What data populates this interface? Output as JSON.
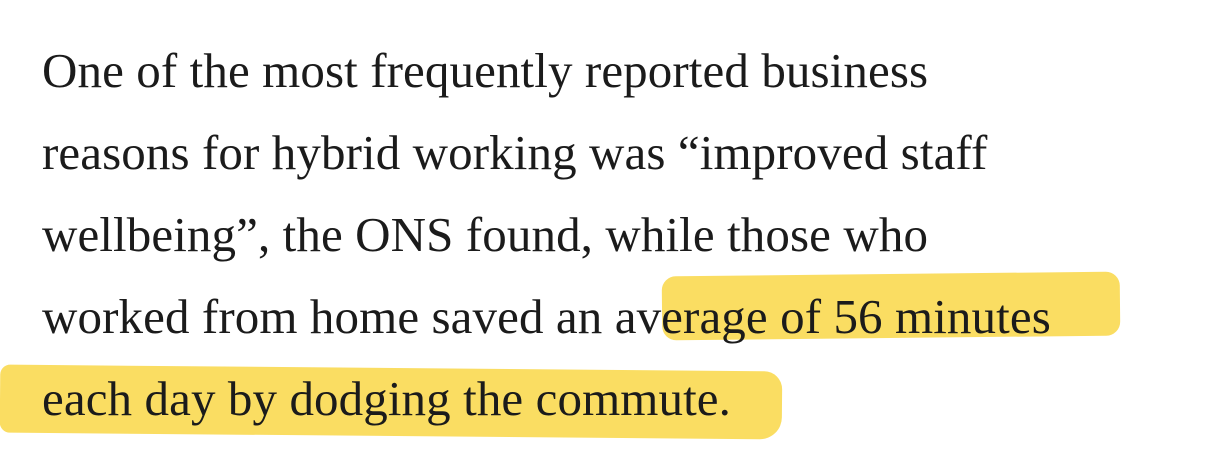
{
  "article": {
    "highlight_color": "#f9d746",
    "text_color": "#1b1b1b",
    "lines": [
      "One of the most frequently reported business",
      "reasons for hybrid working was “improved staff",
      "wellbeing”, the ONS found, while those who",
      "worked from home saved an average of 56 minutes",
      "each day by dodging the commute."
    ],
    "highlighted_text": "n average of 56 minutes each day by dodging the commut"
  }
}
